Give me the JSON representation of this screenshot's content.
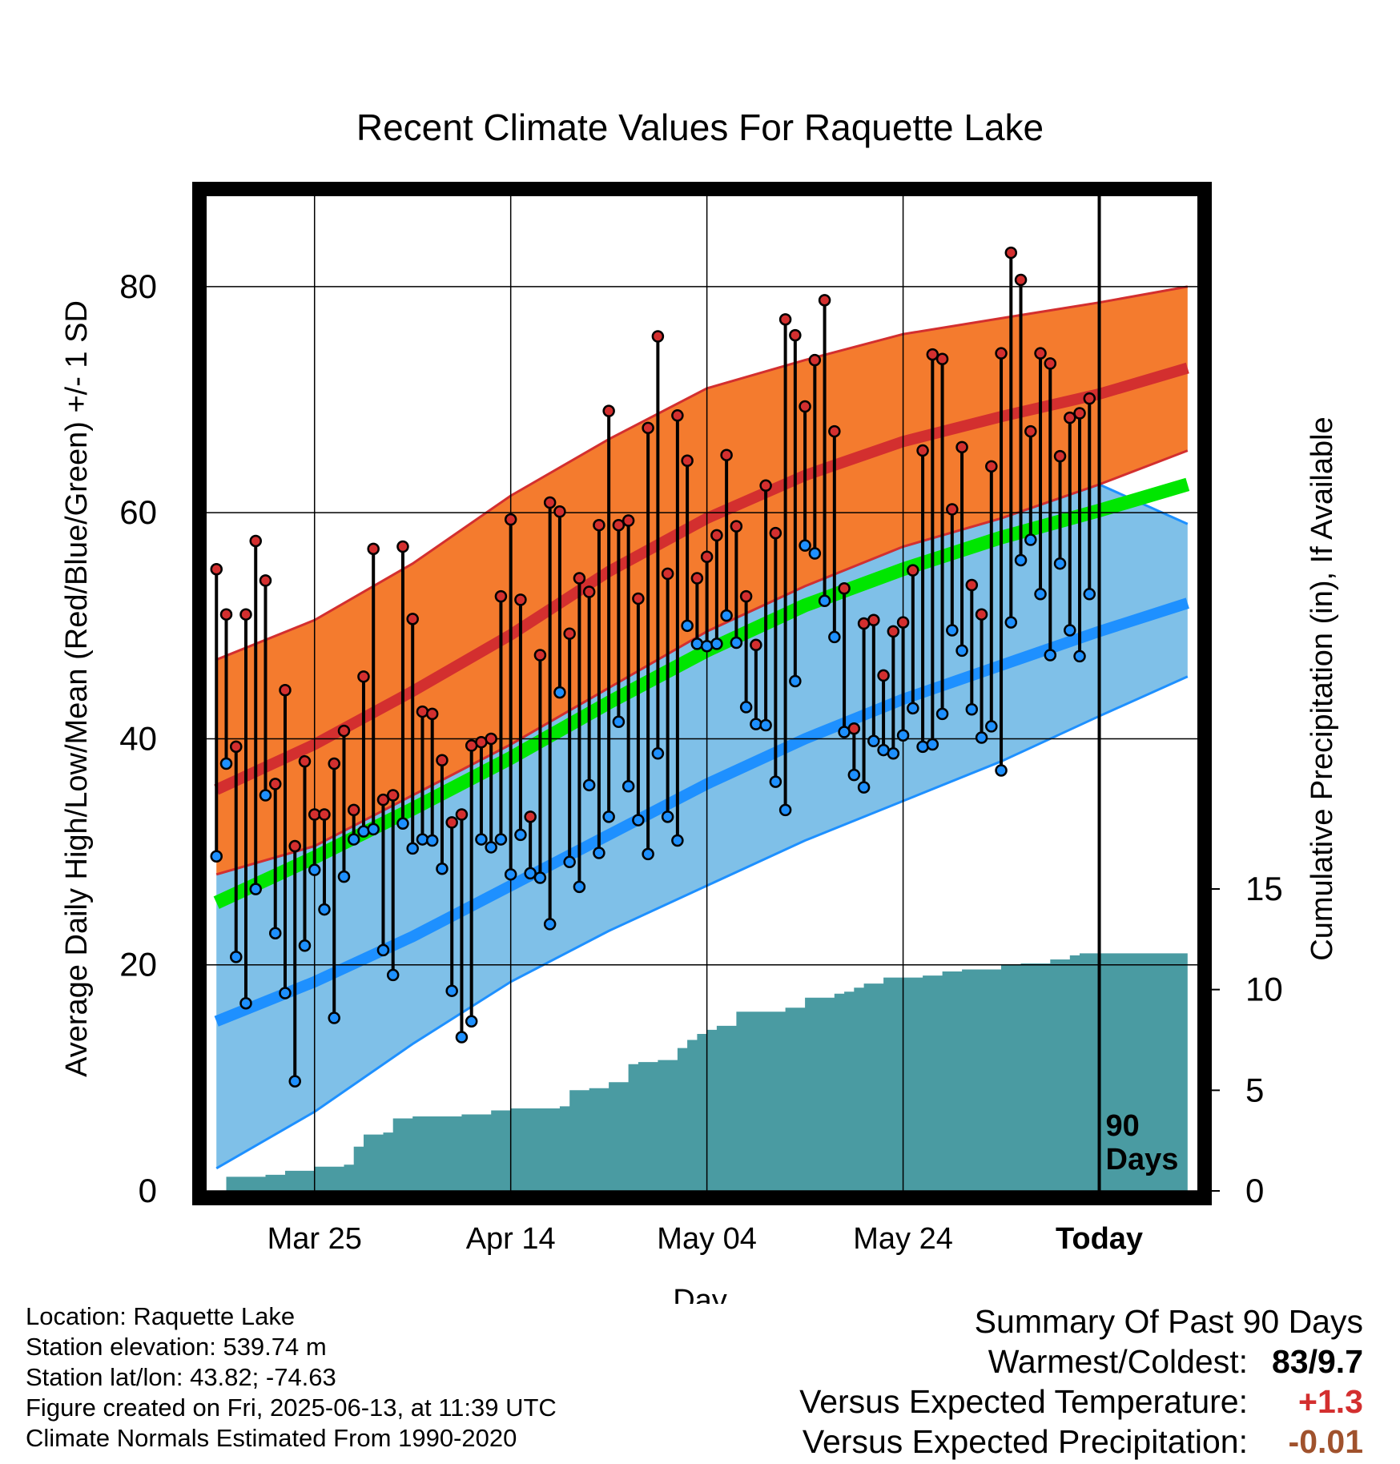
{
  "chart_data": {
    "type": "line",
    "title": "Recent Climate Values For Raquette Lake",
    "xlabel": "Day",
    "ylabel": "Average Daily High/Low/Mean (Red/Blue/Green) +/- 1 SD",
    "y2label": "Cumulative Precipitation (in), If Available",
    "x_tick_labels": [
      "Mar 25",
      "Apr 14",
      "May 04",
      "May 24",
      "Today"
    ],
    "x_tick_days": [
      10,
      30,
      50,
      70,
      90
    ],
    "xlim": [
      -1,
      100
    ],
    "ylim": [
      0,
      88
    ],
    "y_ticks": [
      0,
      20,
      40,
      60,
      80
    ],
    "y2_ticks": [
      0,
      5,
      10,
      15
    ],
    "y2lim": [
      0,
      15
    ],
    "grid": true,
    "today_marker": {
      "day": 90,
      "label_line1": "90",
      "label_line2": "Days"
    },
    "normals": {
      "days": [
        0,
        10,
        20,
        30,
        40,
        50,
        60,
        70,
        80,
        90,
        99
      ],
      "high_mean": [
        35.5,
        39.5,
        44.2,
        49.2,
        54.8,
        59.5,
        63.3,
        66.3,
        68.5,
        70.5,
        72.8
      ],
      "high_upper": [
        47,
        50.5,
        55.5,
        61.5,
        66.5,
        71,
        73.5,
        75.8,
        77.2,
        78.6,
        80
      ],
      "high_lower": [
        28,
        30.5,
        35,
        39.5,
        44.5,
        49.5,
        53.5,
        57,
        59.5,
        62.5,
        65.5
      ],
      "mean": [
        25.5,
        29.5,
        33.8,
        38.3,
        43.2,
        47.8,
        51.8,
        55.0,
        57.8,
        60.2,
        62.5
      ],
      "low_mean": [
        15,
        18.5,
        22.5,
        27,
        31.5,
        36,
        40,
        43.5,
        46.5,
        49.5,
        52
      ],
      "low_upper": [
        28,
        30.5,
        35,
        39.5,
        44.5,
        49.5,
        53.5,
        57,
        59.5,
        62.5,
        59
      ],
      "low_lower": [
        2,
        7,
        13,
        18.5,
        23,
        27,
        31,
        34.5,
        38,
        42,
        45.5
      ]
    },
    "series": [
      {
        "name": "High",
        "color": "#d32f2f",
        "values": [
          55,
          51,
          39.3,
          51,
          57.5,
          54,
          36,
          44.3,
          30.5,
          38,
          33.3,
          33.3,
          37.8,
          40.7,
          33.7,
          45.5,
          56.8,
          34.6,
          35,
          57,
          50.6,
          42.4,
          42.2,
          38.1,
          32.6,
          33.3,
          39.4,
          39.7,
          40,
          52.6,
          59.4,
          52.3,
          33.1,
          47.4,
          60.9,
          60.1,
          49.3,
          54.2,
          53,
          58.9,
          69,
          58.9,
          59.3,
          52.4,
          67.5,
          75.6,
          54.6,
          68.6,
          64.6,
          54.2,
          56.1,
          58,
          65.1,
          58.8,
          52.6,
          48.3,
          62.4,
          58.2,
          77.1,
          75.7,
          69.4,
          73.5,
          78.8,
          67.2,
          53.3,
          40.9,
          50.2,
          50.5,
          45.6,
          49.5,
          50.3,
          54.9,
          65.5,
          74,
          73.6,
          60.3,
          65.8,
          53.6,
          51,
          64.1,
          74.1,
          83,
          80.6,
          67.2,
          74.1,
          73.2,
          65,
          68.4,
          68.8,
          70.1
        ]
      },
      {
        "name": "Low",
        "color": "#2196f3",
        "values": [
          29.6,
          37.8,
          20.7,
          16.6,
          26.7,
          35,
          22.8,
          17.5,
          9.7,
          21.7,
          28.4,
          24.9,
          15.3,
          27.8,
          31.1,
          31.8,
          32,
          21.3,
          19.1,
          32.5,
          30.3,
          31.1,
          31,
          28.5,
          17.7,
          13.6,
          15,
          31.1,
          30.4,
          31.1,
          28,
          31.5,
          28.1,
          27.7,
          23.6,
          44.1,
          29.1,
          26.9,
          35.9,
          29.9,
          33.1,
          41.5,
          35.8,
          32.8,
          29.8,
          38.7,
          33.1,
          31,
          50,
          48.4,
          48.2,
          48.4,
          50.9,
          48.5,
          42.8,
          41.3,
          41.2,
          36.2,
          33.7,
          45.1,
          57.1,
          56.4,
          52.2,
          49,
          40.6,
          36.8,
          35.7,
          39.8,
          39,
          38.7,
          40.3,
          42.7,
          39.3,
          39.5,
          42.2,
          49.6,
          47.8,
          42.6,
          40.1,
          41.1,
          37.2,
          50.3,
          55.8,
          57.6,
          52.8,
          47.4,
          55.5,
          49.6,
          47.3,
          52.8
        ]
      }
    ],
    "precip_cumulative": {
      "days": [
        0,
        1,
        2,
        5,
        7,
        10,
        13,
        14,
        15,
        17,
        18,
        20,
        25,
        28,
        30,
        35,
        36,
        38,
        40,
        42,
        43,
        45,
        47,
        48,
        49,
        50,
        51,
        53,
        55,
        58,
        60,
        63,
        64,
        65,
        66,
        68,
        70,
        72,
        74,
        76,
        78,
        80,
        82,
        85,
        87,
        88,
        90,
        99
      ],
      "values": [
        0,
        0.7,
        0.7,
        0.8,
        1,
        1.2,
        1.3,
        2.2,
        2.8,
        2.9,
        3.6,
        3.7,
        3.8,
        4.0,
        4.1,
        4.2,
        5.0,
        5.1,
        5.4,
        6.3,
        6.4,
        6.5,
        7.1,
        7.5,
        7.8,
        8.0,
        8.2,
        8.9,
        8.9,
        9.1,
        9.6,
        9.8,
        9.9,
        10.1,
        10.3,
        10.6,
        10.6,
        10.7,
        10.9,
        11.0,
        11.0,
        11.2,
        11.3,
        11.5,
        11.7,
        11.8,
        11.8,
        11.8
      ]
    },
    "colors": {
      "high_band": "#f47b2e",
      "high_line": "#d32f2f",
      "low_band": "#7fc0e8",
      "low_line": "#1e90ff",
      "mean_line": "#00e600",
      "precip": "#4a9ba2"
    }
  },
  "info": {
    "location": "Location: Raquette Lake",
    "elevation": "Station elevation: 539.74 m",
    "latlon": "Station lat/lon: 43.82; -74.63",
    "created": "Figure created on Fri, 2025-06-13, at 11:39 UTC",
    "normals": "Climate Normals Estimated From 1990-2020"
  },
  "summary": {
    "title": "Summary Of Past 90 Days",
    "warmest_label": "Warmest/Coldest:",
    "warmest_value": "83/9.7",
    "temp_label": "Versus Expected Temperature:",
    "temp_value": "+1.3",
    "temp_color": "#d32f2f",
    "precip_label": "Versus Expected Precipitation:",
    "precip_value": "-0.01",
    "precip_color": "#a0522d"
  }
}
